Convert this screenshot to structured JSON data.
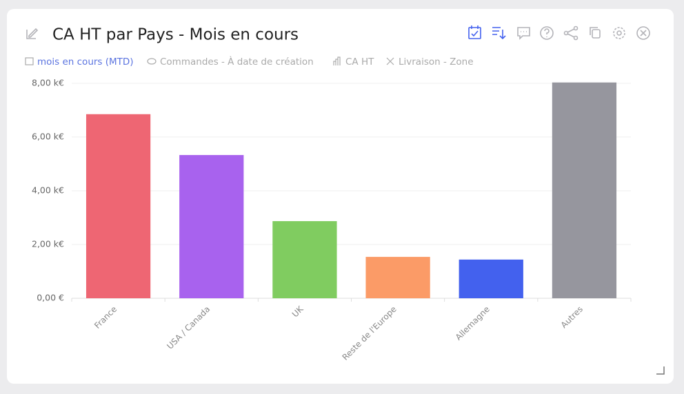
{
  "header": {
    "title": "CA HT par Pays - Mois en cours",
    "filters": [
      "mois en cours (MTD)",
      "Commandes - À date de création",
      "CA HT",
      "Livraison - Zone"
    ]
  },
  "chart_data": {
    "type": "bar",
    "categories": [
      "France",
      "USA / Canada",
      "UK",
      "Reste de l'Europe",
      "Allemagne",
      "Autres"
    ],
    "values": [
      6.85,
      5.33,
      2.87,
      1.54,
      1.44,
      8.03
    ],
    "colors": [
      "#ee6673",
      "#a862ee",
      "#80cc60",
      "#fb9b67",
      "#4361ee",
      "#96969e"
    ],
    "ylim": [
      0,
      8.1
    ],
    "yticks": [
      {
        "value": 0,
        "label": "0,00 €"
      },
      {
        "value": 2,
        "label": "2,00 k€"
      },
      {
        "value": 4,
        "label": "4,00 k€"
      },
      {
        "value": 6,
        "label": "6,00 k€"
      },
      {
        "value": 8,
        "label": "8,00 k€"
      }
    ],
    "grid": true
  }
}
